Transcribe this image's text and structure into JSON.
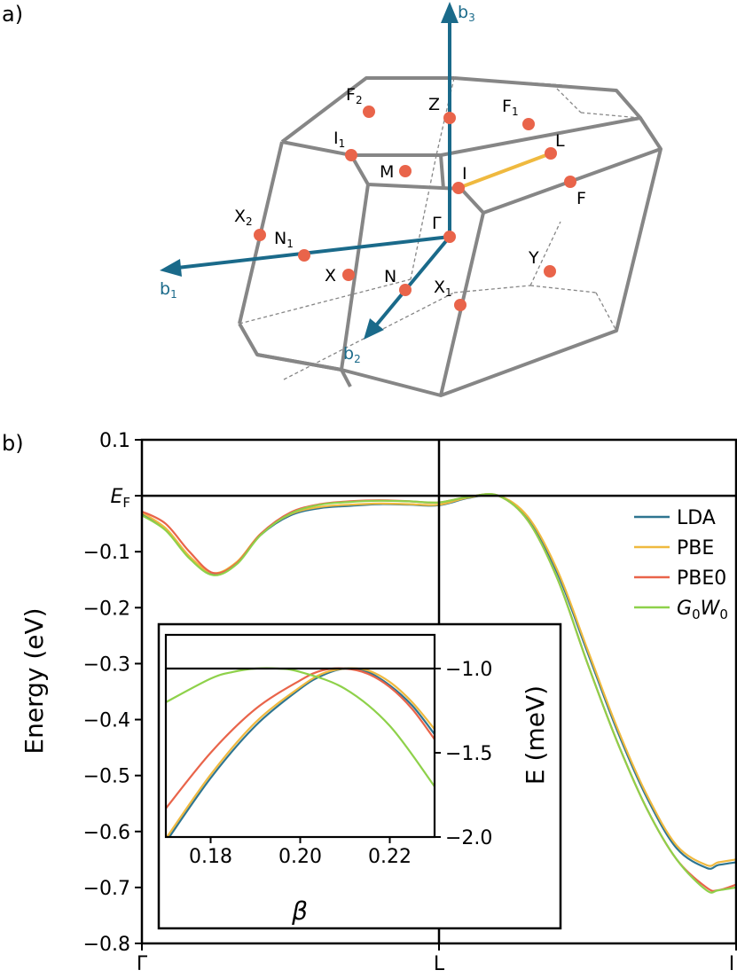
{
  "panel_a": {
    "label": "a)",
    "vectors": [
      {
        "name": "b",
        "sub": "1"
      },
      {
        "name": "b",
        "sub": "2"
      },
      {
        "name": "b",
        "sub": "3"
      }
    ],
    "kpoints": [
      {
        "name": "Γ",
        "sub": ""
      },
      {
        "name": "Z",
        "sub": ""
      },
      {
        "name": "F",
        "sub": "2"
      },
      {
        "name": "F",
        "sub": "1"
      },
      {
        "name": "I",
        "sub": "1"
      },
      {
        "name": "L",
        "sub": ""
      },
      {
        "name": "M",
        "sub": ""
      },
      {
        "name": "I",
        "sub": ""
      },
      {
        "name": "F",
        "sub": ""
      },
      {
        "name": "X",
        "sub": "2"
      },
      {
        "name": "N",
        "sub": "1"
      },
      {
        "name": "X",
        "sub": ""
      },
      {
        "name": "N",
        "sub": ""
      },
      {
        "name": "X",
        "sub": "1"
      },
      {
        "name": "Y",
        "sub": ""
      }
    ],
    "colors": {
      "edge": "#868686",
      "vector": "#1a6a8a",
      "point": "#e9644a",
      "path": "#efb93f"
    }
  },
  "chart_data": [
    {
      "type": "line",
      "panel_label": "b)",
      "ylabel": "Energy (eV)",
      "ylim": [
        -0.8,
        0.1
      ],
      "yticks": [
        {
          "value": 0.1,
          "label": "0.1"
        },
        {
          "value": 0.0,
          "label": "E",
          "sub": "F"
        },
        {
          "value": -0.1,
          "label": "−0.1"
        },
        {
          "value": -0.2,
          "label": "−0.2"
        },
        {
          "value": -0.3,
          "label": "−0.3"
        },
        {
          "value": -0.4,
          "label": "−0.4"
        },
        {
          "value": -0.5,
          "label": "−0.5"
        },
        {
          "value": -0.6,
          "label": "−0.6"
        },
        {
          "value": -0.7,
          "label": "−0.7"
        },
        {
          "value": -0.8,
          "label": "−0.8"
        }
      ],
      "xlim": [
        0,
        1
      ],
      "xticks": [
        {
          "value": 0.0,
          "label": "Γ"
        },
        {
          "value": 0.5,
          "label": "L"
        },
        {
          "value": 1.0,
          "label": "I"
        }
      ],
      "legend_position": "top-right",
      "series": [
        {
          "name": "LDA",
          "color": "#2e7590",
          "x": [
            0,
            0.04,
            0.08,
            0.12,
            0.16,
            0.2,
            0.25,
            0.3,
            0.35,
            0.4,
            0.45,
            0.5,
            0.55,
            0.6,
            0.65,
            0.7,
            0.75,
            0.8,
            0.85,
            0.9,
            0.95,
            0.97,
            1.0
          ],
          "y": [
            -0.032,
            -0.06,
            -0.11,
            -0.14,
            -0.12,
            -0.07,
            -0.035,
            -0.022,
            -0.018,
            -0.015,
            -0.016,
            -0.017,
            -0.004,
            0,
            -0.04,
            -0.14,
            -0.28,
            -0.42,
            -0.54,
            -0.63,
            -0.665,
            -0.66,
            -0.655
          ]
        },
        {
          "name": "PBE",
          "color": "#efb93f",
          "x": [
            0,
            0.04,
            0.08,
            0.12,
            0.16,
            0.2,
            0.25,
            0.3,
            0.35,
            0.4,
            0.45,
            0.5,
            0.55,
            0.6,
            0.65,
            0.7,
            0.75,
            0.8,
            0.85,
            0.9,
            0.95,
            0.97,
            1.0
          ],
          "y": [
            -0.03,
            -0.058,
            -0.108,
            -0.138,
            -0.118,
            -0.068,
            -0.033,
            -0.02,
            -0.016,
            -0.014,
            -0.015,
            -0.016,
            -0.003,
            0,
            -0.038,
            -0.135,
            -0.275,
            -0.415,
            -0.535,
            -0.625,
            -0.66,
            -0.655,
            -0.65
          ]
        },
        {
          "name": "PBE0",
          "color": "#e9644a",
          "x": [
            0,
            0.04,
            0.08,
            0.12,
            0.16,
            0.2,
            0.25,
            0.3,
            0.35,
            0.4,
            0.45,
            0.5,
            0.55,
            0.6,
            0.65,
            0.7,
            0.75,
            0.8,
            0.85,
            0.9,
            0.95,
            0.97,
            1.0
          ],
          "y": [
            -0.028,
            -0.05,
            -0.1,
            -0.138,
            -0.12,
            -0.068,
            -0.03,
            -0.015,
            -0.01,
            -0.008,
            -0.01,
            -0.012,
            -0.002,
            0,
            -0.045,
            -0.15,
            -0.3,
            -0.44,
            -0.56,
            -0.65,
            -0.7,
            -0.705,
            -0.695
          ]
        },
        {
          "name": "G₀W₀",
          "color": "#8ed14a",
          "x": [
            0,
            0.04,
            0.08,
            0.12,
            0.16,
            0.2,
            0.25,
            0.3,
            0.35,
            0.4,
            0.45,
            0.5,
            0.55,
            0.6,
            0.65,
            0.7,
            0.75,
            0.8,
            0.85,
            0.9,
            0.95,
            0.97,
            1.0
          ],
          "y": [
            -0.035,
            -0.062,
            -0.112,
            -0.142,
            -0.122,
            -0.07,
            -0.032,
            -0.016,
            -0.011,
            -0.009,
            -0.01,
            -0.012,
            -0.002,
            0,
            -0.045,
            -0.15,
            -0.3,
            -0.44,
            -0.56,
            -0.65,
            -0.705,
            -0.705,
            -0.7
          ]
        }
      ]
    },
    {
      "type": "line",
      "panel": "inset",
      "xlabel": "β",
      "ylabel": "E (meV)",
      "xlim": [
        0.17,
        0.23
      ],
      "ylim": [
        -2.0,
        -0.8
      ],
      "xticks": [
        {
          "value": 0.18,
          "label": "0.18"
        },
        {
          "value": 0.2,
          "label": "0.20"
        },
        {
          "value": 0.22,
          "label": "0.22"
        }
      ],
      "yticks": [
        {
          "value": -1.0,
          "label": "−1.0"
        },
        {
          "value": -1.5,
          "label": "−1.5"
        },
        {
          "value": -2.0,
          "label": "−2.0"
        }
      ],
      "hline": -1.0,
      "series": [
        {
          "name": "LDA",
          "color": "#2e7590",
          "x": [
            0.17,
            0.18,
            0.19,
            0.2,
            0.205,
            0.21,
            0.215,
            0.22,
            0.225,
            0.23
          ],
          "y": [
            -2.03,
            -1.65,
            -1.34,
            -1.12,
            -1.04,
            -1.0,
            -1.02,
            -1.1,
            -1.22,
            -1.39
          ]
        },
        {
          "name": "PBE",
          "color": "#efb93f",
          "x": [
            0.17,
            0.18,
            0.19,
            0.2,
            0.205,
            0.21,
            0.215,
            0.22,
            0.225,
            0.23
          ],
          "y": [
            -2.01,
            -1.63,
            -1.32,
            -1.11,
            -1.03,
            -1.0,
            -1.01,
            -1.08,
            -1.2,
            -1.36
          ]
        },
        {
          "name": "PBE0",
          "color": "#e9644a",
          "x": [
            0.17,
            0.18,
            0.19,
            0.2,
            0.205,
            0.21,
            0.215,
            0.22,
            0.225,
            0.23
          ],
          "y": [
            -1.83,
            -1.5,
            -1.24,
            -1.07,
            -1.01,
            -1.0,
            -1.03,
            -1.11,
            -1.24,
            -1.42
          ]
        },
        {
          "name": "G₀W₀",
          "color": "#8ed14a",
          "x": [
            0.17,
            0.18,
            0.185,
            0.19,
            0.195,
            0.2,
            0.21,
            0.22,
            0.23
          ],
          "y": [
            -1.2,
            -1.06,
            -1.02,
            -1.0,
            -1.0,
            -1.02,
            -1.12,
            -1.34,
            -1.7
          ]
        }
      ]
    }
  ]
}
